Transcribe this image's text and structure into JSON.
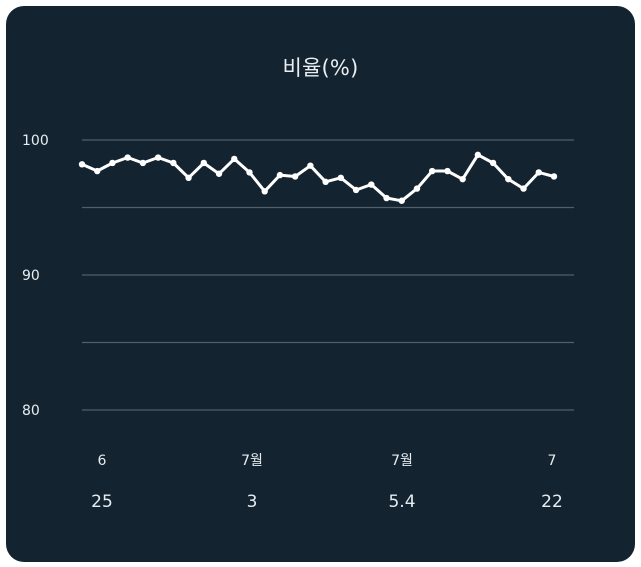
{
  "chart_data": {
    "type": "line",
    "title": "비율(%)",
    "xlabel": "",
    "ylabel": "",
    "ylim": [
      80,
      100
    ],
    "yticks": [
      80,
      90,
      100
    ],
    "grid": true,
    "legend": "none",
    "colors": {
      "background": "#13232f",
      "line": "#ffffff",
      "grid": "#4f5f6b",
      "text": "#e6edf2"
    },
    "x_labels": [
      {
        "top": "6",
        "bottom": "25"
      },
      {
        "top": "7월",
        "bottom": "3"
      },
      {
        "top": "7월",
        "bottom": "5.4"
      },
      {
        "top": "7",
        "bottom": "22"
      }
    ],
    "series": [
      {
        "values": [
          98.2,
          97.7,
          98.3,
          98.7,
          98.3,
          98.7,
          98.3,
          97.2,
          98.3,
          97.5,
          98.6,
          97.6,
          96.2,
          97.4,
          97.3,
          98.1,
          96.9,
          97.2,
          96.3,
          96.7,
          95.7,
          95.5,
          96.4,
          97.7,
          97.7,
          97.1,
          98.9,
          98.3,
          97.1,
          96.4,
          97.6,
          97.3
        ]
      }
    ]
  }
}
